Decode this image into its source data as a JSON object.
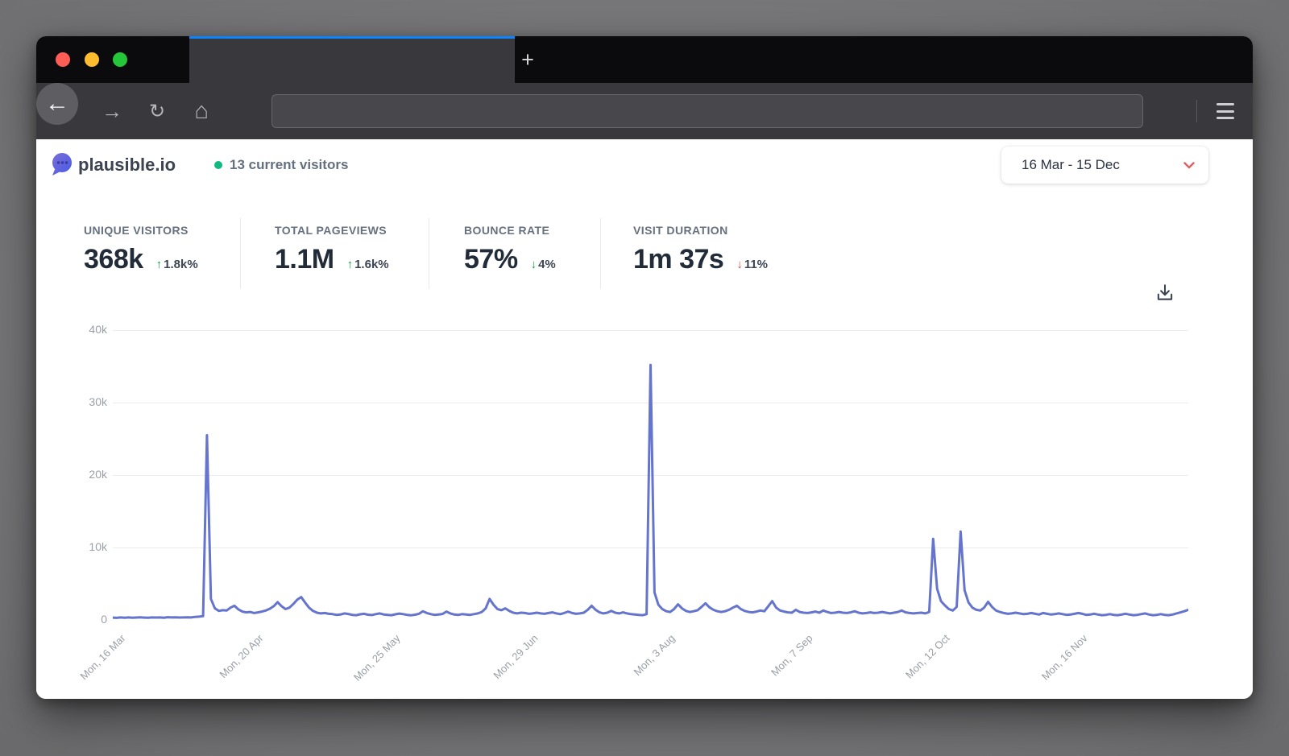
{
  "browser": {
    "window_controls": [
      {
        "name": "close",
        "color": "#ff5d55"
      },
      {
        "name": "minimize",
        "color": "#ffbd2e"
      },
      {
        "name": "maximize",
        "color": "#24c73a"
      }
    ],
    "new_tab_label": "+",
    "toolbar_icons": {
      "back": "←",
      "forward": "→",
      "reload": "↻",
      "home": "⌂",
      "menu": "hamburger-icon"
    },
    "url_value": "",
    "url_placeholder": "",
    "tab_accent_color": "#0a84ff"
  },
  "header": {
    "brand": "plausible.io",
    "live_visitors": "13 current visitors",
    "live_dot_color": "#10b981",
    "date_range": "16 Mar - 15 Dec"
  },
  "stats": [
    {
      "label": "UNIQUE VISITORS",
      "value": "368k",
      "arrow": "↑",
      "change": "1.8k%",
      "arrow_color": "#14a44d"
    },
    {
      "label": "TOTAL PAGEVIEWS",
      "value": "1.1M",
      "arrow": "↑",
      "change": "1.6k%",
      "arrow_color": "#14a44d"
    },
    {
      "label": "BOUNCE RATE",
      "value": "57%",
      "arrow": "↓",
      "change": "4%",
      "arrow_color": "#14a44d"
    },
    {
      "label": "VISIT DURATION",
      "value": "1m 37s",
      "arrow": "↓",
      "change": "11%",
      "arrow_color": "#e0484b"
    }
  ],
  "chart_data": {
    "type": "line",
    "title": "",
    "xlabel": "",
    "ylabel": "",
    "legend": false,
    "grid": true,
    "ylim": [
      0,
      40000
    ],
    "y_tick_labels": [
      "40k",
      "30k",
      "20k",
      "10k",
      "0"
    ],
    "x_tick_labels": [
      "Mon, 16 Mar",
      "Mon, 20 Apr",
      "Mon, 25 May",
      "Mon, 29 Jun",
      "Mon, 3 Aug",
      "Mon, 7 Sep",
      "Mon, 12 Oct",
      "Mon, 16 Nov"
    ],
    "x_tick_indices": [
      0,
      35,
      70,
      105,
      140,
      175,
      210,
      245
    ],
    "x_unit": "day",
    "line_color": "#6574cd",
    "gridline_color": "#ececec",
    "values": [
      320,
      290,
      340,
      310,
      350,
      300,
      330,
      360,
      320,
      300,
      350,
      330,
      340,
      310,
      380,
      340,
      360,
      330,
      350,
      370,
      340,
      420,
      450,
      520,
      25500,
      2900,
      1600,
      1250,
      1350,
      1300,
      1700,
      1950,
      1450,
      1150,
      1050,
      1100,
      950,
      1050,
      1150,
      1300,
      1550,
      1900,
      2450,
      1900,
      1500,
      1700,
      2200,
      2800,
      3150,
      2400,
      1700,
      1250,
      1000,
      900,
      950,
      850,
      800,
      700,
      750,
      900,
      820,
      700,
      650,
      780,
      850,
      720,
      680,
      800,
      900,
      760,
      700,
      650,
      780,
      880,
      800,
      700,
      640,
      720,
      850,
      1200,
      950,
      800,
      700,
      760,
      820,
      1150,
      900,
      750,
      700,
      800,
      750,
      700,
      800,
      900,
      1100,
      1600,
      2900,
      2100,
      1500,
      1350,
      1600,
      1250,
      1000,
      900,
      1000,
      950,
      850,
      900,
      1000,
      900,
      850,
      950,
      1050,
      900,
      800,
      950,
      1150,
      950,
      850,
      900,
      1000,
      1400,
      1950,
      1400,
      1050,
      900,
      1000,
      1250,
      1000,
      900,
      1050,
      900,
      800,
      750,
      700,
      650,
      800,
      35200,
      3800,
      2100,
      1500,
      1200,
      1100,
      1500,
      2150,
      1600,
      1250,
      1100,
      1200,
      1350,
      1800,
      2300,
      1750,
      1400,
      1200,
      1100,
      1200,
      1400,
      1700,
      1950,
      1500,
      1250,
      1100,
      1050,
      1150,
      1300,
      1200,
      1900,
      2600,
      1700,
      1300,
      1150,
      1050,
      1000,
      1400,
      1100,
      1000,
      950,
      1050,
      1150,
      1000,
      1300,
      1100,
      950,
      1000,
      1100,
      1000,
      950,
      1050,
      1200,
      1000,
      900,
      950,
      1050,
      950,
      1000,
      1100,
      1000,
      900,
      1000,
      1100,
      1300,
      1050,
      950,
      900,
      950,
      1000,
      900,
      1100,
      11200,
      4300,
      2600,
      2000,
      1500,
      1300,
      1800,
      12200,
      4100,
      2400,
      1700,
      1400,
      1300,
      1700,
      2500,
      1800,
      1300,
      1100,
      950,
      850,
      900,
      1000,
      900,
      800,
      850,
      950,
      850,
      750,
      950,
      850,
      750,
      800,
      900,
      800,
      700,
      750,
      850,
      950,
      850,
      700,
      750,
      850,
      750,
      650,
      700,
      800,
      700,
      650,
      750,
      850,
      750,
      650,
      700,
      800,
      900,
      750,
      650,
      700,
      800,
      700,
      650,
      750,
      900,
      1050,
      1200,
      1400
    ]
  }
}
